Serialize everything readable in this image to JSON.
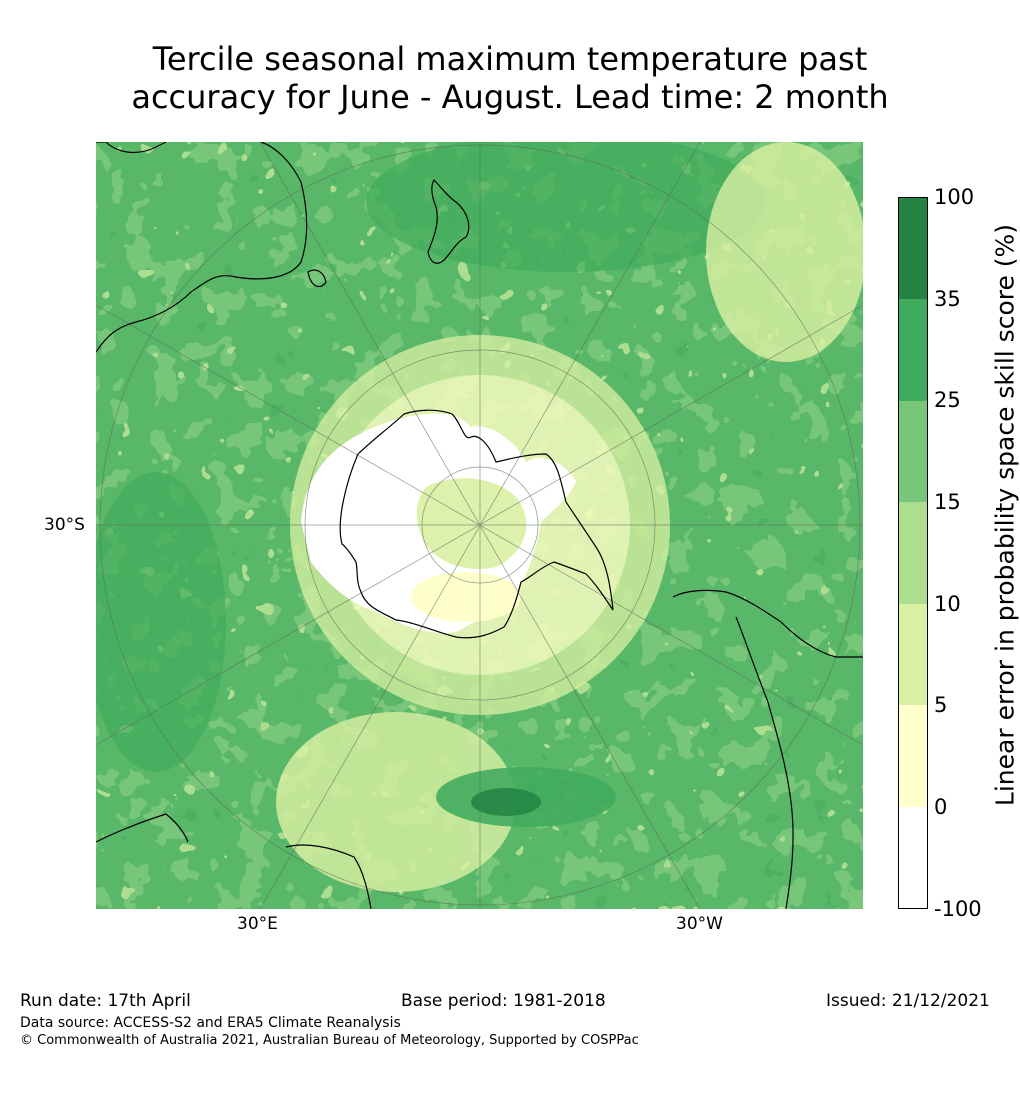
{
  "title": {
    "line1": "Tercile seasonal maximum temperature past",
    "line2": "accuracy for June - August. Lead time: 2 month"
  },
  "map": {
    "projection": "south-polar-stereographic",
    "latitude_labels": [
      "30°S"
    ],
    "longitude_labels": [
      "30°E",
      "30°W"
    ]
  },
  "colorbar": {
    "label": "Linear error in probability space skill score (%)",
    "ticks": [
      "100",
      "35",
      "25",
      "15",
      "10",
      "5",
      "0",
      "-100"
    ],
    "bins": [
      {
        "range": "35 to 100",
        "color": "#238443"
      },
      {
        "range": "25 to 35",
        "color": "#41ab5d"
      },
      {
        "range": "15 to 25",
        "color": "#78c679"
      },
      {
        "range": "10 to 15",
        "color": "#addd8e"
      },
      {
        "range": "5 to 10",
        "color": "#d9f0a3"
      },
      {
        "range": "0 to 5",
        "color": "#ffffcc"
      },
      {
        "range": "-100 to 0",
        "color": "#ffffff"
      }
    ]
  },
  "footer": {
    "run_date": "Run date: 17th April",
    "base_period": "Base period: 1981-2018",
    "issued": "Issued: 21/12/2021",
    "data_source": "Data source: ACCESS-S2 and ERA5 Climate Reanalysis",
    "copyright": "© Commonwealth of Australia 2021, Australian Bureau of Meteorology, Supported by COSPPac"
  }
}
